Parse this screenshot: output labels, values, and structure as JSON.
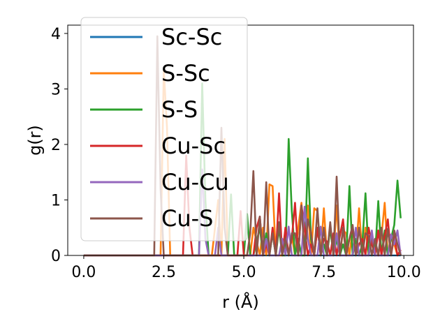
{
  "chart_data": {
    "type": "line",
    "title": "",
    "xlabel": "r (Å)",
    "ylabel": "g(r)",
    "xlim": [
      -0.5,
      10.3
    ],
    "ylim": [
      0,
      4.15
    ],
    "xticks": [
      "0.0",
      "2.5",
      "5.0",
      "7.5",
      "10.0"
    ],
    "xtick_values": [
      0,
      2.5,
      5,
      7.5,
      10
    ],
    "yticks": [
      "0",
      "1",
      "2",
      "3",
      "4"
    ],
    "ytick_values": [
      0,
      1,
      2,
      3,
      4
    ],
    "legend_position": "upper-left",
    "grid": false,
    "series": [
      {
        "name": "Sc-Sc",
        "color": "#1f77b4",
        "x": [
          0,
          9.9
        ],
        "y": [
          0,
          0
        ]
      },
      {
        "name": "S-Sc",
        "color": "#ff7f0e",
        "x": [
          0,
          2.4,
          2.5,
          2.6,
          2.7,
          2.8,
          4.0,
          4.2,
          4.3,
          4.4,
          4.5,
          5.2,
          5.3,
          5.5,
          5.6,
          5.7,
          5.8,
          5.9,
          6.0,
          6.2,
          6.3,
          6.4,
          6.5,
          6.6,
          6.7,
          6.8,
          6.9,
          7.0,
          7.1,
          7.2,
          7.3,
          7.4,
          7.5,
          7.6,
          7.7,
          7.8,
          7.9,
          8.0,
          8.1,
          8.2,
          8.3,
          8.4,
          8.5,
          8.6,
          8.7,
          8.8,
          8.9,
          9.0,
          9.1,
          9.2,
          9.3,
          9.4,
          9.5,
          9.6,
          9.7,
          9.8,
          9.9
        ],
        "y": [
          0,
          0,
          3.35,
          2.3,
          0,
          0,
          0,
          1.0,
          0,
          2.1,
          0,
          0,
          0.5,
          0,
          0.5,
          0,
          1.28,
          1.25,
          0,
          0,
          0.4,
          0,
          0.35,
          0,
          0.5,
          0.95,
          0,
          0.9,
          0,
          0.85,
          0.8,
          0,
          0.85,
          0,
          0.5,
          0,
          0.9,
          0,
          0.45,
          0.4,
          0,
          0.5,
          0,
          0.85,
          0,
          0.5,
          0,
          0.3,
          0.25,
          0,
          0.35,
          0.95,
          0,
          0.3,
          0.2,
          0,
          0.1
        ]
      },
      {
        "name": "S-S",
        "color": "#2ca02c",
        "x": [
          0,
          3.6,
          3.7,
          3.8,
          3.9,
          4.5,
          4.6,
          4.7,
          4.8,
          5.0,
          5.1,
          5.2,
          5.3,
          5.5,
          5.6,
          5.7,
          5.8,
          5.9,
          6.0,
          6.1,
          6.2,
          6.3,
          6.4,
          6.5,
          6.6,
          6.7,
          6.8,
          6.9,
          7.0,
          7.1,
          7.2,
          7.3,
          7.4,
          7.5,
          7.6,
          7.7,
          7.8,
          7.9,
          8.0,
          8.1,
          8.2,
          8.3,
          8.4,
          8.5,
          8.6,
          8.7,
          8.8,
          8.9,
          9.0,
          9.1,
          9.2,
          9.3,
          9.4,
          9.5,
          9.6,
          9.7,
          9.8,
          9.9
        ],
        "y": [
          0,
          0,
          3.1,
          1.0,
          0,
          0,
          1.1,
          0,
          0,
          0,
          0.75,
          0,
          0,
          0.5,
          0,
          0.4,
          0,
          0.4,
          0,
          0.5,
          0,
          0,
          2.1,
          0.8,
          0,
          0.3,
          0,
          0,
          1.75,
          0.3,
          0,
          0.5,
          0,
          0.2,
          0,
          0.5,
          0,
          0.3,
          0,
          0.2,
          0,
          1.25,
          0,
          0.3,
          0,
          0.2,
          1.12,
          0,
          0.3,
          0,
          0.98,
          0,
          0.45,
          0,
          0.3,
          0.55,
          1.35,
          0.67
        ]
      },
      {
        "name": "Cu-Sc",
        "color": "#d62728",
        "x": [
          0,
          3.1,
          3.2,
          3.3,
          3.4,
          4.8,
          4.9,
          5.0,
          5.3,
          5.4,
          5.5,
          5.6,
          5.7,
          5.8,
          5.9,
          6.0,
          6.1,
          6.2,
          6.3,
          6.4,
          6.5,
          6.6,
          6.7,
          6.8,
          6.9,
          7.0,
          7.1,
          7.2,
          7.3,
          7.4,
          7.5,
          7.6,
          7.7,
          7.8,
          7.9,
          8.0,
          8.1,
          8.2,
          8.3,
          8.4,
          8.5,
          8.6,
          8.7,
          8.8,
          8.9,
          9.0,
          9.1,
          9.2,
          9.3,
          9.4,
          9.5,
          9.6,
          9.7,
          9.8,
          9.9
        ],
        "y": [
          0,
          0,
          1.8,
          0.5,
          0,
          0,
          0.8,
          0,
          0,
          0.5,
          0.7,
          0,
          0.2,
          0,
          0.5,
          0,
          1.12,
          0,
          0.5,
          0,
          0.3,
          0.95,
          0,
          0.9,
          0.5,
          0,
          0.2,
          0,
          0.5,
          0,
          0.3,
          0.25,
          0,
          0.4,
          0,
          0.35,
          0.65,
          0,
          0.3,
          0.5,
          0,
          0.2,
          0.3,
          0,
          0.5,
          0.2,
          0,
          0.45,
          0,
          0.35,
          0.65,
          0,
          0.35,
          0,
          0.1
        ]
      },
      {
        "name": "Cu-Cu",
        "color": "#9467bd",
        "x": [
          0,
          3.6,
          3.7,
          3.8,
          3.9,
          4.1,
          4.2,
          4.3,
          5.6,
          5.7,
          5.8,
          6.1,
          6.2,
          6.3,
          6.4,
          6.5,
          6.8,
          6.9,
          7.0,
          7.1,
          7.3,
          7.4,
          7.5,
          7.8,
          7.9,
          8.0,
          8.4,
          8.5,
          8.6,
          8.9,
          9.0,
          9.1,
          9.5,
          9.6,
          9.7,
          9.8,
          9.9
        ],
        "y": [
          0,
          0,
          1.55,
          0.3,
          0,
          0,
          0.5,
          0,
          0,
          0.3,
          0,
          0,
          0.3,
          0,
          0.52,
          0,
          0,
          0.88,
          0.3,
          0,
          0,
          0.52,
          0,
          0,
          0.4,
          0,
          0,
          0.5,
          0,
          0,
          0.45,
          0,
          0,
          0.38,
          0.2,
          0.45,
          0
        ]
      },
      {
        "name": "Cu-S",
        "color": "#8c564b",
        "x": [
          0,
          2.2,
          2.3,
          2.4,
          2.5,
          4.2,
          4.3,
          4.4,
          4.5,
          5.1,
          5.2,
          5.3,
          5.4,
          5.5,
          5.6,
          5.7,
          5.8,
          5.9,
          6.0,
          6.1,
          6.2,
          6.3,
          6.4,
          6.5,
          6.6,
          6.7,
          6.8,
          6.9,
          7.0,
          7.1,
          7.2,
          7.3,
          7.4,
          7.5,
          7.6,
          7.7,
          7.8,
          7.9,
          8.0,
          8.1,
          8.2,
          8.3,
          8.4,
          8.5,
          8.6,
          8.7,
          8.8,
          8.9,
          9.0,
          9.1,
          9.2,
          9.3,
          9.4,
          9.5,
          9.6,
          9.7,
          9.8,
          9.9
        ],
        "y": [
          0,
          0,
          3.95,
          1.2,
          0,
          0,
          2.3,
          0.5,
          0,
          0,
          0.4,
          1.52,
          0,
          0.7,
          0,
          1.32,
          0,
          0.4,
          0,
          0.6,
          0,
          0.3,
          0,
          0.4,
          0.4,
          0,
          0.9,
          0,
          0.65,
          0.4,
          0,
          0.85,
          0,
          0.5,
          0,
          0.6,
          0,
          1.42,
          0,
          0.5,
          0,
          0.3,
          0.55,
          0,
          0.5,
          0,
          0.4,
          0.35,
          0,
          0.3,
          0,
          0.5,
          0,
          0.48,
          0,
          0.45,
          0.2,
          0
        ]
      }
    ]
  }
}
